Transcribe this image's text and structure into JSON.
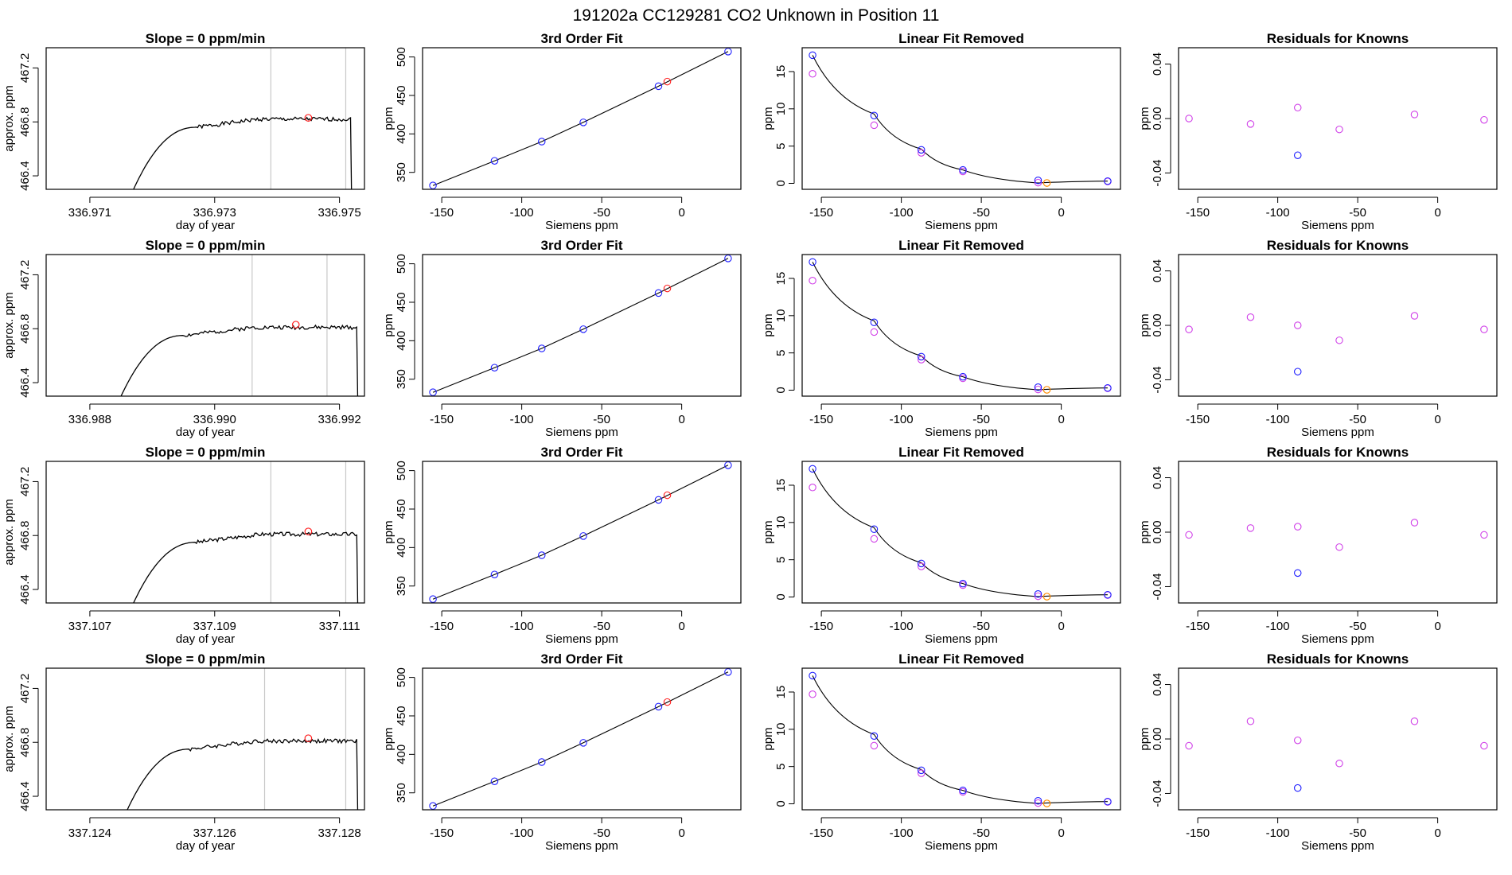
{
  "page_title": "191202a      CC129281    CO2 Unknown in Position  11",
  "colors": {
    "trace": "#000000",
    "marker_red": "#ff2020",
    "known_blue": "#1f1fff",
    "residual_magenta": "#d040e8",
    "unknown_orange": "#ff8c00",
    "vline": "#c8c8c8"
  },
  "chart_data": [
    {
      "type": "line",
      "title": "Slope =  0  ppm/min",
      "xlabel": "day of year",
      "ylabel": "approx. ppm",
      "xlim": [
        336.9703,
        336.9754
      ],
      "ylim": [
        466.3,
        467.35
      ],
      "xticks": [
        336.971,
        336.973,
        336.975
      ],
      "xtick_labels": [
        "336.971",
        "336.973",
        "336.975"
      ],
      "yticks": [
        466.4,
        466.8,
        467.2
      ],
      "ytick_labels": [
        "466.4",
        "466.8",
        "467.2"
      ],
      "vlines": [
        336.9739,
        336.9751
      ],
      "marker": {
        "x": 336.9745,
        "y": 466.83
      },
      "trace": {
        "start": 336.9717,
        "end": 336.9752,
        "rise_end": 336.9727,
        "plateau": 466.82,
        "seed": 1
      }
    },
    {
      "type": "scatter",
      "title": "3rd Order Fit",
      "xlabel": "Siemens ppm",
      "ylabel": "ppm",
      "xlim": [
        -162,
        37
      ],
      "ylim": [
        328,
        512
      ],
      "xticks": [
        -150,
        -100,
        -50,
        0
      ],
      "xtick_labels": [
        "-150",
        "-100",
        "-50",
        "0"
      ],
      "yticks": [
        350,
        400,
        450,
        500
      ],
      "ytick_labels": [
        "350",
        "400",
        "450",
        "500"
      ],
      "known_x": [
        -155.5,
        -117,
        -87.5,
        -61.5,
        -14.5,
        29
      ],
      "known_y": [
        333,
        365,
        390,
        415,
        462,
        507
      ],
      "unknown": {
        "x": -9,
        "y": 468
      }
    },
    {
      "type": "scatter",
      "title": "Linear Fit Removed",
      "xlabel": "Siemens ppm",
      "ylabel": "ppm",
      "xlim": [
        -162,
        37
      ],
      "ylim": [
        -0.8,
        18.2
      ],
      "xticks": [
        -150,
        -100,
        -50,
        0
      ],
      "xtick_labels": [
        "-150",
        "-100",
        "-50",
        "0"
      ],
      "yticks": [
        0,
        5,
        10,
        15
      ],
      "ytick_labels": [
        "0",
        "5",
        "10",
        "15"
      ],
      "known_x": [
        -155.5,
        -117,
        -87.5,
        -61.5,
        -14.5,
        29
      ],
      "known_y": [
        17.2,
        9.1,
        4.5,
        1.8,
        0.4,
        0.3
      ],
      "alt_y": [
        14.7,
        7.8,
        4.1,
        1.6,
        0.1,
        0.25
      ],
      "unknown": {
        "x": -9,
        "y": 0.05
      },
      "curve_x": [
        -155.5,
        -117,
        -87.5,
        -61.5,
        -14.5,
        29
      ],
      "curve_y": [
        17.2,
        9.3,
        4.6,
        1.8,
        0.05,
        0.3
      ]
    },
    {
      "type": "scatter",
      "title": "Residuals for Knowns",
      "xlabel": "Siemens ppm",
      "ylabel": "ppm",
      "xlim": [
        -162,
        37
      ],
      "ylim": [
        -0.052,
        0.052
      ],
      "xticks": [
        -150,
        -100,
        -50,
        0
      ],
      "xtick_labels": [
        "-150",
        "-100",
        "-50",
        "0"
      ],
      "yticks": [
        -0.04,
        0.0,
        0.04
      ],
      "ytick_labels": [
        "-0.04",
        "0.00",
        "0.04"
      ],
      "magenta_x": [
        -155.5,
        -117,
        -87.5,
        -61.5,
        -14.5,
        29
      ],
      "magenta_y": [
        0.0,
        -0.004,
        0.008,
        -0.008,
        0.003,
        -0.001
      ],
      "blue": {
        "x": -87.5,
        "y": -0.027
      }
    },
    {
      "type": "line",
      "title": "Slope =  0  ppm/min",
      "xlabel": "day of year",
      "ylabel": "approx. ppm",
      "xlim": [
        336.9873,
        336.9924
      ],
      "ylim": [
        466.3,
        467.35
      ],
      "xticks": [
        336.988,
        336.99,
        336.992
      ],
      "xtick_labels": [
        "336.988",
        "336.990",
        "336.992"
      ],
      "yticks": [
        466.4,
        466.8,
        467.2
      ],
      "ytick_labels": [
        "466.4",
        "466.8",
        "467.2"
      ],
      "vlines": [
        336.9906,
        336.9918
      ],
      "marker": {
        "x": 336.9913,
        "y": 466.83
      },
      "trace": {
        "start": 336.9885,
        "end": 336.9923,
        "rise_end": 336.9895,
        "plateau": 466.81,
        "seed": 2
      }
    },
    {
      "type": "scatter",
      "title": "3rd Order Fit",
      "xlabel": "Siemens ppm",
      "ylabel": "ppm",
      "xlim": [
        -162,
        37
      ],
      "ylim": [
        328,
        512
      ],
      "xticks": [
        -150,
        -100,
        -50,
        0
      ],
      "xtick_labels": [
        "-150",
        "-100",
        "-50",
        "0"
      ],
      "yticks": [
        350,
        400,
        450,
        500
      ],
      "ytick_labels": [
        "350",
        "400",
        "450",
        "500"
      ],
      "known_x": [
        -155.5,
        -117,
        -87.5,
        -61.5,
        -14.5,
        29
      ],
      "known_y": [
        333,
        365,
        390,
        415,
        462,
        507
      ],
      "unknown": {
        "x": -9,
        "y": 468
      }
    },
    {
      "type": "scatter",
      "title": "Linear Fit Removed",
      "xlabel": "Siemens ppm",
      "ylabel": "ppm",
      "xlim": [
        -162,
        37
      ],
      "ylim": [
        -0.8,
        18.2
      ],
      "xticks": [
        -150,
        -100,
        -50,
        0
      ],
      "xtick_labels": [
        "-150",
        "-100",
        "-50",
        "0"
      ],
      "yticks": [
        0,
        5,
        10,
        15
      ],
      "ytick_labels": [
        "0",
        "5",
        "10",
        "15"
      ],
      "known_x": [
        -155.5,
        -117,
        -87.5,
        -61.5,
        -14.5,
        29
      ],
      "known_y": [
        17.2,
        9.1,
        4.5,
        1.8,
        0.4,
        0.3
      ],
      "alt_y": [
        14.7,
        7.8,
        4.1,
        1.6,
        0.1,
        0.25
      ],
      "unknown": {
        "x": -9,
        "y": 0.05
      },
      "curve_x": [
        -155.5,
        -117,
        -87.5,
        -61.5,
        -14.5,
        29
      ],
      "curve_y": [
        17.2,
        9.3,
        4.6,
        1.8,
        0.05,
        0.3
      ]
    },
    {
      "type": "scatter",
      "title": "Residuals for Knowns",
      "xlabel": "Siemens ppm",
      "ylabel": "ppm",
      "xlim": [
        -162,
        37
      ],
      "ylim": [
        -0.052,
        0.052
      ],
      "xticks": [
        -150,
        -100,
        -50,
        0
      ],
      "xtick_labels": [
        "-150",
        "-100",
        "-50",
        "0"
      ],
      "yticks": [
        -0.04,
        0.0,
        0.04
      ],
      "ytick_labels": [
        "-0.04",
        "0.00",
        "0.04"
      ],
      "magenta_x": [
        -155.5,
        -117,
        -87.5,
        -61.5,
        -14.5,
        29
      ],
      "magenta_y": [
        -0.003,
        0.006,
        0.0,
        -0.011,
        0.007,
        -0.003
      ],
      "blue": {
        "x": -87.5,
        "y": -0.034
      }
    },
    {
      "type": "line",
      "title": "Slope =  0  ppm/min",
      "xlabel": "day of year",
      "ylabel": "approx. ppm",
      "xlim": [
        337.1063,
        337.1114
      ],
      "ylim": [
        466.3,
        467.35
      ],
      "xticks": [
        337.107,
        337.109,
        337.111
      ],
      "xtick_labels": [
        "337.107",
        "337.109",
        "337.111"
      ],
      "yticks": [
        466.4,
        466.8,
        467.2
      ],
      "ytick_labels": [
        "466.4",
        "466.8",
        "467.2"
      ],
      "vlines": [
        337.1099,
        337.1111
      ],
      "marker": {
        "x": 337.1105,
        "y": 466.83
      },
      "trace": {
        "start": 337.1077,
        "end": 337.1113,
        "rise_end": 337.1087,
        "plateau": 466.81,
        "seed": 3
      }
    },
    {
      "type": "scatter",
      "title": "3rd Order Fit",
      "xlabel": "Siemens ppm",
      "ylabel": "ppm",
      "xlim": [
        -162,
        37
      ],
      "ylim": [
        328,
        512
      ],
      "xticks": [
        -150,
        -100,
        -50,
        0
      ],
      "xtick_labels": [
        "-150",
        "-100",
        "-50",
        "0"
      ],
      "yticks": [
        350,
        400,
        450,
        500
      ],
      "ytick_labels": [
        "350",
        "400",
        "450",
        "500"
      ],
      "known_x": [
        -155.5,
        -117,
        -87.5,
        -61.5,
        -14.5,
        29
      ],
      "known_y": [
        333,
        365,
        390,
        415,
        462,
        507
      ],
      "unknown": {
        "x": -9,
        "y": 468
      }
    },
    {
      "type": "scatter",
      "title": "Linear Fit Removed",
      "xlabel": "Siemens ppm",
      "ylabel": "ppm",
      "xlim": [
        -162,
        37
      ],
      "ylim": [
        -0.8,
        18.2
      ],
      "xticks": [
        -150,
        -100,
        -50,
        0
      ],
      "xtick_labels": [
        "-150",
        "-100",
        "-50",
        "0"
      ],
      "yticks": [
        0,
        5,
        10,
        15
      ],
      "ytick_labels": [
        "0",
        "5",
        "10",
        "15"
      ],
      "known_x": [
        -155.5,
        -117,
        -87.5,
        -61.5,
        -14.5,
        29
      ],
      "known_y": [
        17.2,
        9.1,
        4.5,
        1.8,
        0.4,
        0.3
      ],
      "alt_y": [
        14.7,
        7.8,
        4.1,
        1.6,
        0.1,
        0.25
      ],
      "unknown": {
        "x": -9,
        "y": 0.05
      },
      "curve_x": [
        -155.5,
        -117,
        -87.5,
        -61.5,
        -14.5,
        29
      ],
      "curve_y": [
        17.2,
        9.3,
        4.6,
        1.8,
        0.05,
        0.3
      ]
    },
    {
      "type": "scatter",
      "title": "Residuals for Knowns",
      "xlabel": "Siemens ppm",
      "ylabel": "ppm",
      "xlim": [
        -162,
        37
      ],
      "ylim": [
        -0.052,
        0.052
      ],
      "xticks": [
        -150,
        -100,
        -50,
        0
      ],
      "xtick_labels": [
        "-150",
        "-100",
        "-50",
        "0"
      ],
      "yticks": [
        -0.04,
        0.0,
        0.04
      ],
      "ytick_labels": [
        "-0.04",
        "0.00",
        "0.04"
      ],
      "magenta_x": [
        -155.5,
        -117,
        -87.5,
        -61.5,
        -14.5,
        29
      ],
      "magenta_y": [
        -0.002,
        0.003,
        0.004,
        -0.011,
        0.007,
        -0.002
      ],
      "blue": {
        "x": -87.5,
        "y": -0.03
      }
    },
    {
      "type": "line",
      "title": "Slope =  0  ppm/min",
      "xlabel": "day of year",
      "ylabel": "approx. ppm",
      "xlim": [
        337.1233,
        337.1284
      ],
      "ylim": [
        466.3,
        467.35
      ],
      "xticks": [
        337.124,
        337.126,
        337.128
      ],
      "xtick_labels": [
        "337.124",
        "337.126",
        "337.128"
      ],
      "yticks": [
        466.4,
        466.8,
        467.2
      ],
      "ytick_labels": [
        "466.4",
        "466.8",
        "467.2"
      ],
      "vlines": [
        337.1268,
        337.1281
      ],
      "marker": {
        "x": 337.1275,
        "y": 466.83
      },
      "trace": {
        "start": 337.1246,
        "end": 337.1283,
        "rise_end": 337.1256,
        "plateau": 466.81,
        "seed": 4
      }
    },
    {
      "type": "scatter",
      "title": "3rd Order Fit",
      "xlabel": "Siemens ppm",
      "ylabel": "ppm",
      "xlim": [
        -162,
        37
      ],
      "ylim": [
        328,
        512
      ],
      "xticks": [
        -150,
        -100,
        -50,
        0
      ],
      "xtick_labels": [
        "-150",
        "-100",
        "-50",
        "0"
      ],
      "yticks": [
        350,
        400,
        450,
        500
      ],
      "ytick_labels": [
        "350",
        "400",
        "450",
        "500"
      ],
      "known_x": [
        -155.5,
        -117,
        -87.5,
        -61.5,
        -14.5,
        29
      ],
      "known_y": [
        333,
        365,
        390,
        415,
        462,
        507
      ],
      "unknown": {
        "x": -9,
        "y": 468
      }
    },
    {
      "type": "scatter",
      "title": "Linear Fit Removed",
      "xlabel": "Siemens ppm",
      "ylabel": "ppm",
      "xlim": [
        -162,
        37
      ],
      "ylim": [
        -0.8,
        18.2
      ],
      "xticks": [
        -150,
        -100,
        -50,
        0
      ],
      "xtick_labels": [
        "-150",
        "-100",
        "-50",
        "0"
      ],
      "yticks": [
        0,
        5,
        10,
        15
      ],
      "ytick_labels": [
        "0",
        "5",
        "10",
        "15"
      ],
      "known_x": [
        -155.5,
        -117,
        -87.5,
        -61.5,
        -14.5,
        29
      ],
      "known_y": [
        17.2,
        9.1,
        4.5,
        1.8,
        0.4,
        0.3
      ],
      "alt_y": [
        14.7,
        7.8,
        4.1,
        1.6,
        0.1,
        0.25
      ],
      "unknown": {
        "x": -9,
        "y": 0.05
      },
      "curve_x": [
        -155.5,
        -117,
        -87.5,
        -61.5,
        -14.5,
        29
      ],
      "curve_y": [
        17.2,
        9.3,
        4.6,
        1.8,
        0.05,
        0.3
      ]
    },
    {
      "type": "scatter",
      "title": "Residuals for Knowns",
      "xlabel": "Siemens ppm",
      "ylabel": "ppm",
      "xlim": [
        -162,
        37
      ],
      "ylim": [
        -0.052,
        0.052
      ],
      "xticks": [
        -150,
        -100,
        -50,
        0
      ],
      "xtick_labels": [
        "-150",
        "-100",
        "-50",
        "0"
      ],
      "yticks": [
        -0.04,
        0.0,
        0.04
      ],
      "ytick_labels": [
        "-0.04",
        "0.00",
        "0.04"
      ],
      "magenta_x": [
        -155.5,
        -117,
        -87.5,
        -61.5,
        -14.5,
        29
      ],
      "magenta_y": [
        -0.005,
        0.013,
        -0.001,
        -0.018,
        0.013,
        -0.005
      ],
      "blue": {
        "x": -87.5,
        "y": -0.036
      }
    }
  ]
}
